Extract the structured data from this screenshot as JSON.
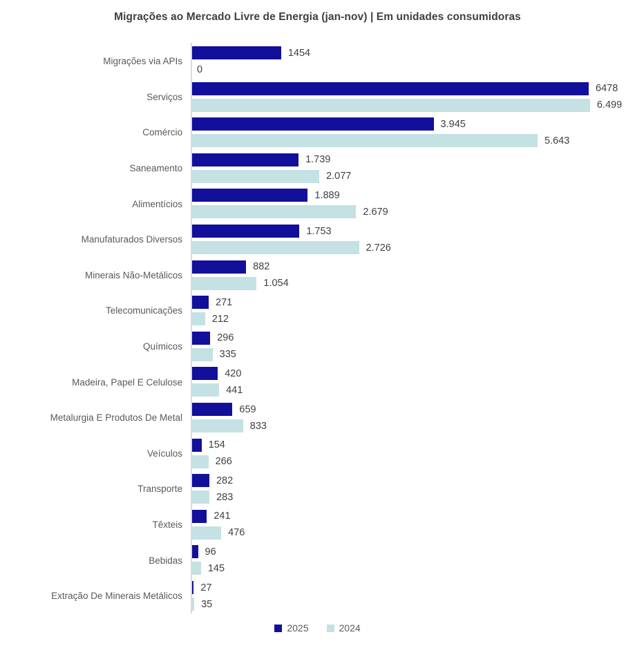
{
  "title": "Migrações ao Mercado Livre de Energia (jan-nov) | Em unidades consumidoras",
  "colors": {
    "series_2025": "#120f9b",
    "series_2024": "#c4e1e3",
    "axis_line": "#d9d9d9",
    "category_text": "#595959",
    "value_text": "#404040",
    "title_text": "#3f3f3f"
  },
  "legend": [
    {
      "name": "2025",
      "color": "#120f9b"
    },
    {
      "name": "2024",
      "color": "#c4e1e3"
    }
  ],
  "chart_data": {
    "type": "bar",
    "orientation": "horizontal",
    "title": "Migrações ao Mercado Livre de Energia (jan-nov) | Em unidades consumidoras",
    "xlabel": "",
    "ylabel": "",
    "xlim": [
      0,
      6499
    ],
    "grid": false,
    "legend_position": "bottom",
    "categories": [
      "Migrações via APIs",
      "Serviços",
      "Comércio",
      "Saneamento",
      "Alimentícios",
      "Manufaturados Diversos",
      "Minerais Não-Metálicos",
      "Telecomunicações",
      "Químicos",
      "Madeira, Papel E Celulose",
      "Metalurgia E Produtos De Metal",
      "Veículos",
      "Transporte",
      "Têxteis",
      "Bebidas",
      "Extração De Minerais Metálicos"
    ],
    "series": [
      {
        "name": "2025",
        "color": "#120f9b",
        "values": [
          1454,
          6478,
          3945,
          1739,
          1889,
          1753,
          882,
          271,
          296,
          420,
          659,
          154,
          282,
          241,
          96,
          27
        ],
        "labels": [
          "1454",
          "6478",
          "3.945",
          "1.739",
          "1.889",
          "1.753",
          "882",
          "271",
          "296",
          "420",
          "659",
          "154",
          "282",
          "241",
          "96",
          "27"
        ]
      },
      {
        "name": "2024",
        "color": "#c4e1e3",
        "values": [
          0,
          6499,
          5643,
          2077,
          2679,
          2726,
          1054,
          212,
          335,
          441,
          833,
          266,
          283,
          476,
          145,
          35
        ],
        "labels": [
          "0",
          "6.499",
          "5.643",
          "2.077",
          "2.679",
          "2.726",
          "1.054",
          "212",
          "335",
          "441",
          "833",
          "266",
          "283",
          "476",
          "145",
          "35"
        ]
      }
    ]
  }
}
